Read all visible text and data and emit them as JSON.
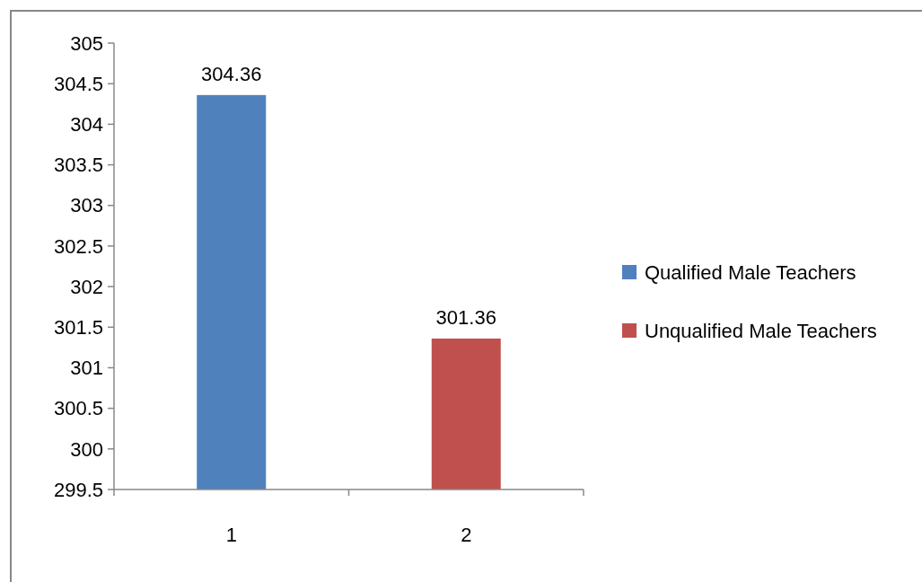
{
  "chart_data": {
    "type": "bar",
    "categories": [
      "1",
      "2"
    ],
    "series": [
      {
        "name": "Qualified Male Teachers",
        "color": "#4f81bd",
        "values": [
          304.36,
          null
        ]
      },
      {
        "name": "Unqualified Male Teachers",
        "color": "#c0504d",
        "values": [
          null,
          301.36
        ]
      }
    ],
    "ylim": [
      299.5,
      305
    ],
    "yticks": [
      299.5,
      300,
      300.5,
      301,
      301.5,
      302,
      302.5,
      303,
      303.5,
      304,
      304.5,
      305
    ],
    "data_labels": true,
    "grid": false,
    "legend": "right"
  }
}
